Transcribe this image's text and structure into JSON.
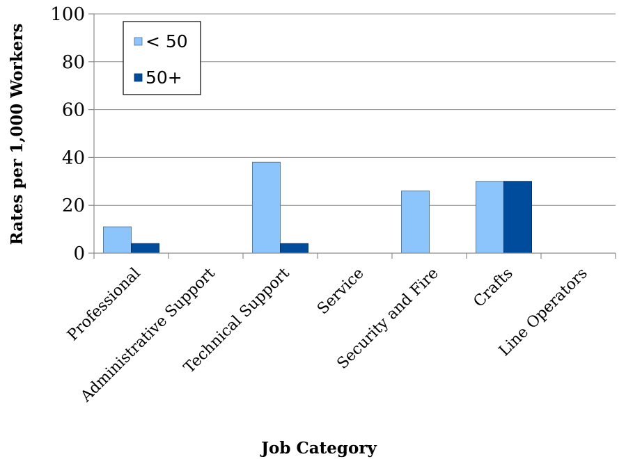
{
  "chart_data": {
    "type": "bar",
    "title": "",
    "xlabel": "Job Category",
    "ylabel": "Rates per 1,000 Workers",
    "ylim": [
      0,
      100
    ],
    "yticks": [
      0,
      20,
      40,
      60,
      80,
      100
    ],
    "grid": true,
    "legend_position": "top-left",
    "categories": [
      "Professional",
      "Administrative Support",
      "Technical Support",
      "Service",
      "Security and Fire",
      "Crafts",
      "Line Operators"
    ],
    "series": [
      {
        "name": "< 50",
        "color": "#8CC4FC",
        "values": [
          11,
          0,
          38,
          0,
          26,
          30,
          0
        ]
      },
      {
        "name": "50+",
        "color": "#004C9C",
        "values": [
          4,
          0,
          4,
          0,
          0,
          30,
          0
        ]
      }
    ]
  }
}
